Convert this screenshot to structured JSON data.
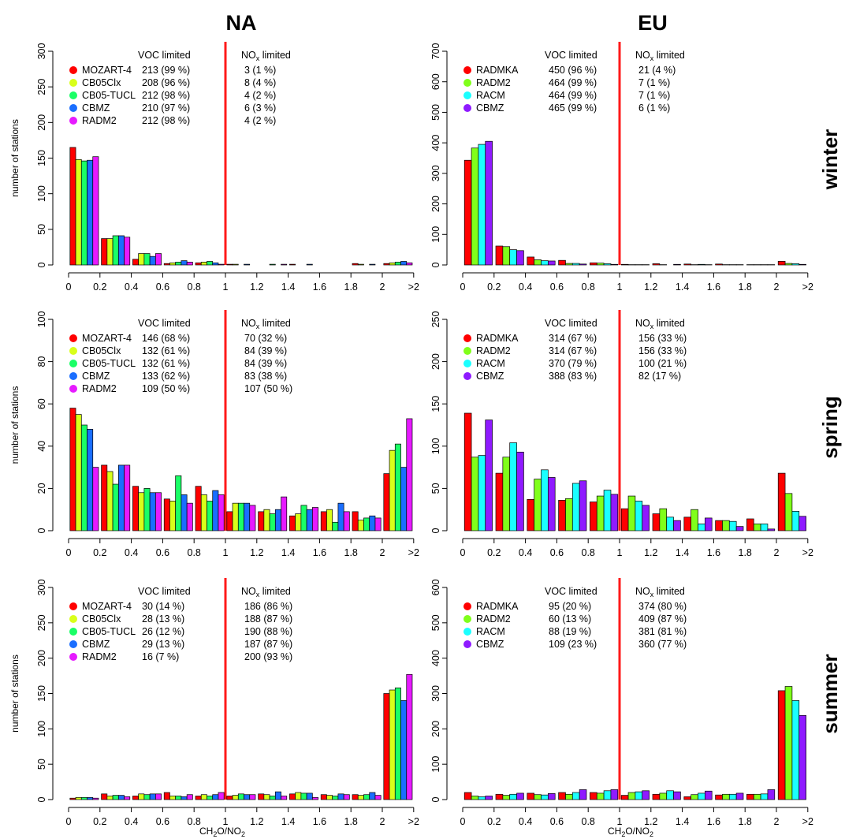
{
  "page": {
    "regions": [
      "NA",
      "EU"
    ],
    "seasons": [
      "winter",
      "spring",
      "summer"
    ],
    "x_axis_title_base": "CH",
    "x_axis_title_sub1": "2",
    "x_axis_title_mid": "O/NO",
    "x_axis_title_sub2": "2",
    "y_axis_title": "number of stations",
    "voc_header": "VOC limited",
    "nox_header_base": "NO",
    "nox_header_sub": "x",
    "nox_header_tail": " limited"
  },
  "colors": {
    "MOZART-4": "#ff0000",
    "RADMKA": "#ff0000",
    "CB05Clx": "#d9ff1a",
    "RADM2_EU": "#80ff1a",
    "CB05-TUCL": "#1aff66",
    "RACM": "#1affff",
    "CBMZ_NA": "#1a6eff",
    "CBMZ_EU": "#8f1aff",
    "RADM2_NA": "#e61aff",
    "threshold": "#ff1a1a"
  },
  "chart_data": [
    {
      "type": "bar",
      "region": "NA",
      "season": "winter",
      "ylabel": "number of stations",
      "ylim": [
        0,
        300
      ],
      "yticks": [
        0,
        50,
        100,
        150,
        200,
        250,
        300
      ],
      "categories": [
        "0-0.2",
        "0.2-0.4",
        "0.4-0.6",
        "0.6-0.8",
        "0.8-1",
        "1-1.2",
        "1.2-1.4",
        "1.4-1.6",
        "1.6-1.8",
        "1.8-2",
        ">2"
      ],
      "xtick_labels": [
        "0",
        "0.2",
        "0.4",
        "0.6",
        "0.8",
        "1",
        "1.2",
        "1.4",
        "1.6",
        "1.8",
        "2",
        ">2"
      ],
      "threshold_x": 1,
      "series": [
        {
          "name": "MOZART-4",
          "color_key": "MOZART-4",
          "values": [
            165,
            37,
            8,
            2,
            3,
            1,
            0,
            1,
            0,
            2,
            2
          ],
          "voc": "213 (99 %)",
          "nox": "3 (1 %)"
        },
        {
          "name": "CB05Clx",
          "color_key": "CB05Clx",
          "values": [
            148,
            37,
            16,
            3,
            4,
            1,
            0,
            0,
            0,
            1,
            3
          ],
          "voc": "208 (96 %)",
          "nox": "8 (4 %)"
        },
        {
          "name": "CB05-TUCL",
          "color_key": "CB05-TUCL",
          "values": [
            146,
            41,
            16,
            4,
            5,
            0,
            1,
            0,
            0,
            0,
            4
          ],
          "voc": "212 (98 %)",
          "nox": "4 (2 %)"
        },
        {
          "name": "CBMZ",
          "color_key": "CBMZ_NA",
          "values": [
            147,
            41,
            12,
            6,
            3,
            1,
            0,
            1,
            0,
            1,
            5
          ],
          "voc": "210 (97 %)",
          "nox": "6 (3 %)"
        },
        {
          "name": "RADM2",
          "color_key": "RADM2_NA",
          "values": [
            152,
            39,
            16,
            4,
            1,
            0,
            1,
            0,
            0,
            0,
            3
          ],
          "voc": "212 (98 %)",
          "nox": "4 (2 %)"
        }
      ]
    },
    {
      "type": "bar",
      "region": "EU",
      "season": "winter",
      "ylim": [
        0,
        700
      ],
      "yticks": [
        0,
        100,
        200,
        300,
        400,
        500,
        600,
        700
      ],
      "categories": [
        "0-0.2",
        "0.2-0.4",
        "0.4-0.6",
        "0.6-0.8",
        "0.8-1",
        "1-1.2",
        "1.2-1.4",
        "1.4-1.6",
        "1.6-1.8",
        "1.8-2",
        ">2"
      ],
      "xtick_labels": [
        "0",
        "0.2",
        "0.4",
        "0.6",
        "0.8",
        "1",
        "1.2",
        "1.4",
        "1.6",
        "1.8",
        "2",
        ">2"
      ],
      "threshold_x": 1,
      "series": [
        {
          "name": "RADMKA",
          "color_key": "RADMKA",
          "values": [
            343,
            62,
            26,
            15,
            7,
            2,
            4,
            3,
            3,
            1,
            12
          ],
          "voc": "450 (96 %)",
          "nox": "21 (4 %)"
        },
        {
          "name": "RADM2",
          "color_key": "RADM2_EU",
          "values": [
            383,
            60,
            17,
            5,
            6,
            1,
            1,
            1,
            1,
            1,
            5
          ],
          "voc": "464 (99 %)",
          "nox": "7 (1 %)"
        },
        {
          "name": "RACM",
          "color_key": "RACM",
          "values": [
            395,
            50,
            14,
            5,
            4,
            1,
            0,
            2,
            1,
            1,
            4
          ],
          "voc": "464 (99 %)",
          "nox": "7 (1 %)"
        },
        {
          "name": "CBMZ",
          "color_key": "CBMZ_EU",
          "values": [
            405,
            47,
            13,
            3,
            2,
            1,
            2,
            1,
            1,
            1,
            2
          ],
          "voc": "465 (99 %)",
          "nox": "6 (1 %)"
        }
      ]
    },
    {
      "type": "bar",
      "region": "NA",
      "season": "spring",
      "ylabel": "number of stations",
      "ylim": [
        0,
        100
      ],
      "yticks": [
        0,
        20,
        40,
        60,
        80,
        100
      ],
      "categories": [
        "0-0.2",
        "0.2-0.4",
        "0.4-0.6",
        "0.6-0.8",
        "0.8-1",
        "1-1.2",
        "1.2-1.4",
        "1.4-1.6",
        "1.6-1.8",
        "1.8-2",
        ">2"
      ],
      "xtick_labels": [
        "0",
        "0.2",
        "0.4",
        "0.6",
        "0.8",
        "1",
        "1.2",
        "1.4",
        "1.6",
        "1.8",
        "2",
        ">2"
      ],
      "threshold_x": 1,
      "series": [
        {
          "name": "MOZART-4",
          "color_key": "MOZART-4",
          "values": [
            58,
            31,
            21,
            15,
            21,
            9,
            9,
            7,
            9,
            9,
            27
          ],
          "voc": "146 (68 %)",
          "nox": "70 (32 %)"
        },
        {
          "name": "CB05Clx",
          "color_key": "CB05Clx",
          "values": [
            55,
            28,
            18,
            14,
            17,
            13,
            10,
            8,
            10,
            5,
            38
          ],
          "voc": "132 (61 %)",
          "nox": "84 (39 %)"
        },
        {
          "name": "CB05-TUCL",
          "color_key": "CB05-TUCL",
          "values": [
            50,
            22,
            20,
            26,
            14,
            13,
            8,
            12,
            4,
            6,
            41
          ],
          "voc": "132 (61 %)",
          "nox": "84 (39 %)"
        },
        {
          "name": "CBMZ",
          "color_key": "CBMZ_NA",
          "values": [
            48,
            31,
            18,
            17,
            19,
            13,
            10,
            10,
            13,
            7,
            30
          ],
          "voc": "133 (62 %)",
          "nox": "83 (38 %)"
        },
        {
          "name": "RADM2",
          "color_key": "RADM2_NA",
          "values": [
            30,
            31,
            18,
            13,
            17,
            12,
            16,
            11,
            9,
            6,
            53
          ],
          "voc": "109 (50 %)",
          "nox": "107 (50 %)"
        }
      ]
    },
    {
      "type": "bar",
      "region": "EU",
      "season": "spring",
      "ylim": [
        0,
        250
      ],
      "yticks": [
        0,
        50,
        100,
        150,
        200,
        250
      ],
      "categories": [
        "0-0.2",
        "0.2-0.4",
        "0.4-0.6",
        "0.6-0.8",
        "0.8-1",
        "1-1.2",
        "1.2-1.4",
        "1.4-1.6",
        "1.6-1.8",
        "1.8-2",
        ">2"
      ],
      "xtick_labels": [
        "0",
        "0.2",
        "0.4",
        "0.6",
        "0.8",
        "1",
        "1.2",
        "1.4",
        "1.6",
        "1.8",
        "2",
        ">2"
      ],
      "threshold_x": 1,
      "series": [
        {
          "name": "RADMKA",
          "color_key": "RADMKA",
          "values": [
            139,
            68,
            37,
            36,
            34,
            26,
            20,
            16,
            12,
            14,
            68
          ],
          "voc": "314 (67 %)",
          "nox": "156 (33 %)"
        },
        {
          "name": "RADM2",
          "color_key": "RADM2_EU",
          "values": [
            87,
            87,
            61,
            38,
            41,
            41,
            26,
            25,
            12,
            8,
            44
          ],
          "voc": "314 (67 %)",
          "nox": "156 (33 %)"
        },
        {
          "name": "RACM",
          "color_key": "RACM",
          "values": [
            89,
            104,
            72,
            56,
            48,
            35,
            16,
            8,
            11,
            8,
            23
          ],
          "voc": "370 (79 %)",
          "nox": "100 (21 %)"
        },
        {
          "name": "CBMZ",
          "color_key": "CBMZ_EU",
          "values": [
            131,
            93,
            63,
            59,
            43,
            30,
            12,
            15,
            5,
            2,
            17
          ],
          "voc": "388 (83 %)",
          "nox": "82 (17 %)"
        }
      ]
    },
    {
      "type": "bar",
      "region": "NA",
      "season": "summer",
      "ylabel": "number of stations",
      "ylim": [
        0,
        300
      ],
      "yticks": [
        0,
        50,
        100,
        150,
        200,
        250,
        300
      ],
      "categories": [
        "0-0.2",
        "0.2-0.4",
        "0.4-0.6",
        "0.6-0.8",
        "0.8-1",
        "1-1.2",
        "1.2-1.4",
        "1.4-1.6",
        "1.6-1.8",
        "1.8-2",
        ">2"
      ],
      "xtick_labels": [
        "0",
        "0.2",
        "0.4",
        "0.6",
        "0.8",
        "1",
        "1.2",
        "1.4",
        "1.6",
        "1.8",
        "2",
        ">2"
      ],
      "threshold_x": 1,
      "series": [
        {
          "name": "MOZART-4",
          "color_key": "MOZART-4",
          "values": [
            2,
            8,
            5,
            10,
            5,
            5,
            8,
            8,
            7,
            7,
            150
          ],
          "voc": "30 (14 %)",
          "nox": "186 (86 %)"
        },
        {
          "name": "CB05Clx",
          "color_key": "CB05Clx",
          "values": [
            3,
            5,
            8,
            5,
            7,
            6,
            7,
            10,
            6,
            6,
            155
          ],
          "voc": "28 (13 %)",
          "nox": "188 (87 %)"
        },
        {
          "name": "CB05-TUCL",
          "color_key": "CB05-TUCL",
          "values": [
            3,
            6,
            7,
            5,
            5,
            8,
            5,
            9,
            5,
            7,
            158
          ],
          "voc": "26 (12 %)",
          "nox": "190 (88 %)"
        },
        {
          "name": "CBMZ",
          "color_key": "CBMZ_NA",
          "values": [
            3,
            6,
            8,
            4,
            7,
            7,
            11,
            9,
            8,
            10,
            140
          ],
          "voc": "29 (13 %)",
          "nox": "187 (87 %)"
        },
        {
          "name": "RADM2",
          "color_key": "RADM2_NA",
          "values": [
            2,
            4,
            8,
            7,
            10,
            7,
            5,
            3,
            7,
            6,
            177
          ],
          "voc": "16 (7 %)",
          "nox": "200 (93 %)"
        }
      ]
    },
    {
      "type": "bar",
      "region": "EU",
      "season": "summer",
      "ylim": [
        0,
        600
      ],
      "yticks": [
        0,
        100,
        200,
        300,
        400,
        500,
        600
      ],
      "categories": [
        "0-0.2",
        "0.2-0.4",
        "0.4-0.6",
        "0.6-0.8",
        "0.8-1",
        "1-1.2",
        "1.2-1.4",
        "1.4-1.6",
        "1.6-1.8",
        "1.8-2",
        ">2"
      ],
      "xtick_labels": [
        "0",
        "0.2",
        "0.4",
        "0.6",
        "0.8",
        "1",
        "1.2",
        "1.4",
        "1.6",
        "1.8",
        "2",
        ">2"
      ],
      "threshold_x": 1,
      "series": [
        {
          "name": "RADMKA",
          "color_key": "RADMKA",
          "values": [
            20,
            15,
            18,
            20,
            20,
            12,
            15,
            8,
            13,
            15,
            308
          ],
          "voc": "95 (20 %)",
          "nox": "374 (80 %)"
        },
        {
          "name": "RADM2",
          "color_key": "RADM2_EU",
          "values": [
            10,
            12,
            14,
            15,
            18,
            20,
            18,
            14,
            15,
            15,
            320
          ],
          "voc": "60 (13 %)",
          "nox": "409 (87 %)"
        },
        {
          "name": "RACM",
          "color_key": "RACM",
          "values": [
            8,
            15,
            13,
            20,
            25,
            22,
            25,
            18,
            15,
            16,
            280
          ],
          "voc": "88 (19 %)",
          "nox": "381 (81 %)"
        },
        {
          "name": "CBMZ",
          "color_key": "CBMZ_EU",
          "values": [
            10,
            18,
            17,
            28,
            28,
            25,
            22,
            24,
            18,
            28,
            238
          ],
          "voc": "109 (23 %)",
          "nox": "360 (77 %)"
        }
      ]
    }
  ]
}
